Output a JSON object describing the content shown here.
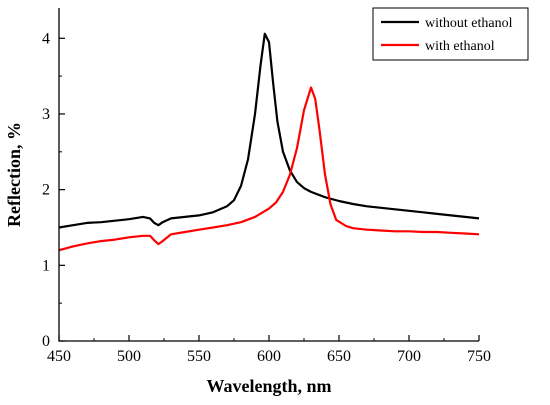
{
  "chart_data": {
    "type": "line",
    "title": "",
    "xlabel": "Wavelength, nm",
    "ylabel": "Reflection, %",
    "xlim": [
      450,
      750
    ],
    "ylim": [
      0,
      4.4
    ],
    "x_ticks": [
      450,
      500,
      550,
      600,
      650,
      700,
      750
    ],
    "y_ticks": [
      0,
      1,
      2,
      3,
      4
    ],
    "x_tick_labels": [
      "450",
      "500",
      "550",
      "600",
      "650",
      "700",
      "750"
    ],
    "y_tick_labels": [
      "0",
      "1",
      "2",
      "3",
      "4"
    ],
    "grid": false,
    "legend_position": "top-right",
    "series": [
      {
        "name": "without ethanol",
        "color": "#000000",
        "points": [
          [
            450,
            1.5
          ],
          [
            460,
            1.53
          ],
          [
            470,
            1.56
          ],
          [
            480,
            1.57
          ],
          [
            490,
            1.59
          ],
          [
            500,
            1.61
          ],
          [
            510,
            1.64
          ],
          [
            515,
            1.62
          ],
          [
            518,
            1.56
          ],
          [
            521,
            1.53
          ],
          [
            524,
            1.57
          ],
          [
            530,
            1.62
          ],
          [
            540,
            1.64
          ],
          [
            550,
            1.66
          ],
          [
            560,
            1.7
          ],
          [
            570,
            1.78
          ],
          [
            575,
            1.86
          ],
          [
            580,
            2.05
          ],
          [
            585,
            2.4
          ],
          [
            590,
            3.0
          ],
          [
            594,
            3.65
          ],
          [
            597,
            4.06
          ],
          [
            600,
            3.95
          ],
          [
            603,
            3.4
          ],
          [
            606,
            2.9
          ],
          [
            610,
            2.5
          ],
          [
            615,
            2.25
          ],
          [
            620,
            2.1
          ],
          [
            625,
            2.02
          ],
          [
            630,
            1.97
          ],
          [
            640,
            1.9
          ],
          [
            650,
            1.85
          ],
          [
            660,
            1.81
          ],
          [
            670,
            1.78
          ],
          [
            680,
            1.76
          ],
          [
            690,
            1.74
          ],
          [
            700,
            1.72
          ],
          [
            710,
            1.7
          ],
          [
            720,
            1.68
          ],
          [
            730,
            1.66
          ],
          [
            740,
            1.64
          ],
          [
            750,
            1.62
          ]
        ]
      },
      {
        "name": "with ethanol",
        "color": "#ff0000",
        "points": [
          [
            450,
            1.2
          ],
          [
            460,
            1.25
          ],
          [
            470,
            1.29
          ],
          [
            480,
            1.32
          ],
          [
            490,
            1.34
          ],
          [
            500,
            1.37
          ],
          [
            510,
            1.39
          ],
          [
            515,
            1.39
          ],
          [
            518,
            1.33
          ],
          [
            521,
            1.28
          ],
          [
            524,
            1.32
          ],
          [
            530,
            1.41
          ],
          [
            540,
            1.44
          ],
          [
            550,
            1.47
          ],
          [
            560,
            1.5
          ],
          [
            570,
            1.53
          ],
          [
            580,
            1.57
          ],
          [
            590,
            1.64
          ],
          [
            600,
            1.75
          ],
          [
            605,
            1.83
          ],
          [
            610,
            1.97
          ],
          [
            615,
            2.2
          ],
          [
            620,
            2.55
          ],
          [
            625,
            3.05
          ],
          [
            630,
            3.35
          ],
          [
            633,
            3.2
          ],
          [
            636,
            2.8
          ],
          [
            640,
            2.2
          ],
          [
            644,
            1.8
          ],
          [
            648,
            1.6
          ],
          [
            655,
            1.52
          ],
          [
            660,
            1.49
          ],
          [
            670,
            1.47
          ],
          [
            680,
            1.46
          ],
          [
            690,
            1.45
          ],
          [
            700,
            1.45
          ],
          [
            710,
            1.44
          ],
          [
            720,
            1.44
          ],
          [
            730,
            1.43
          ],
          [
            740,
            1.42
          ],
          [
            750,
            1.41
          ]
        ]
      }
    ]
  }
}
